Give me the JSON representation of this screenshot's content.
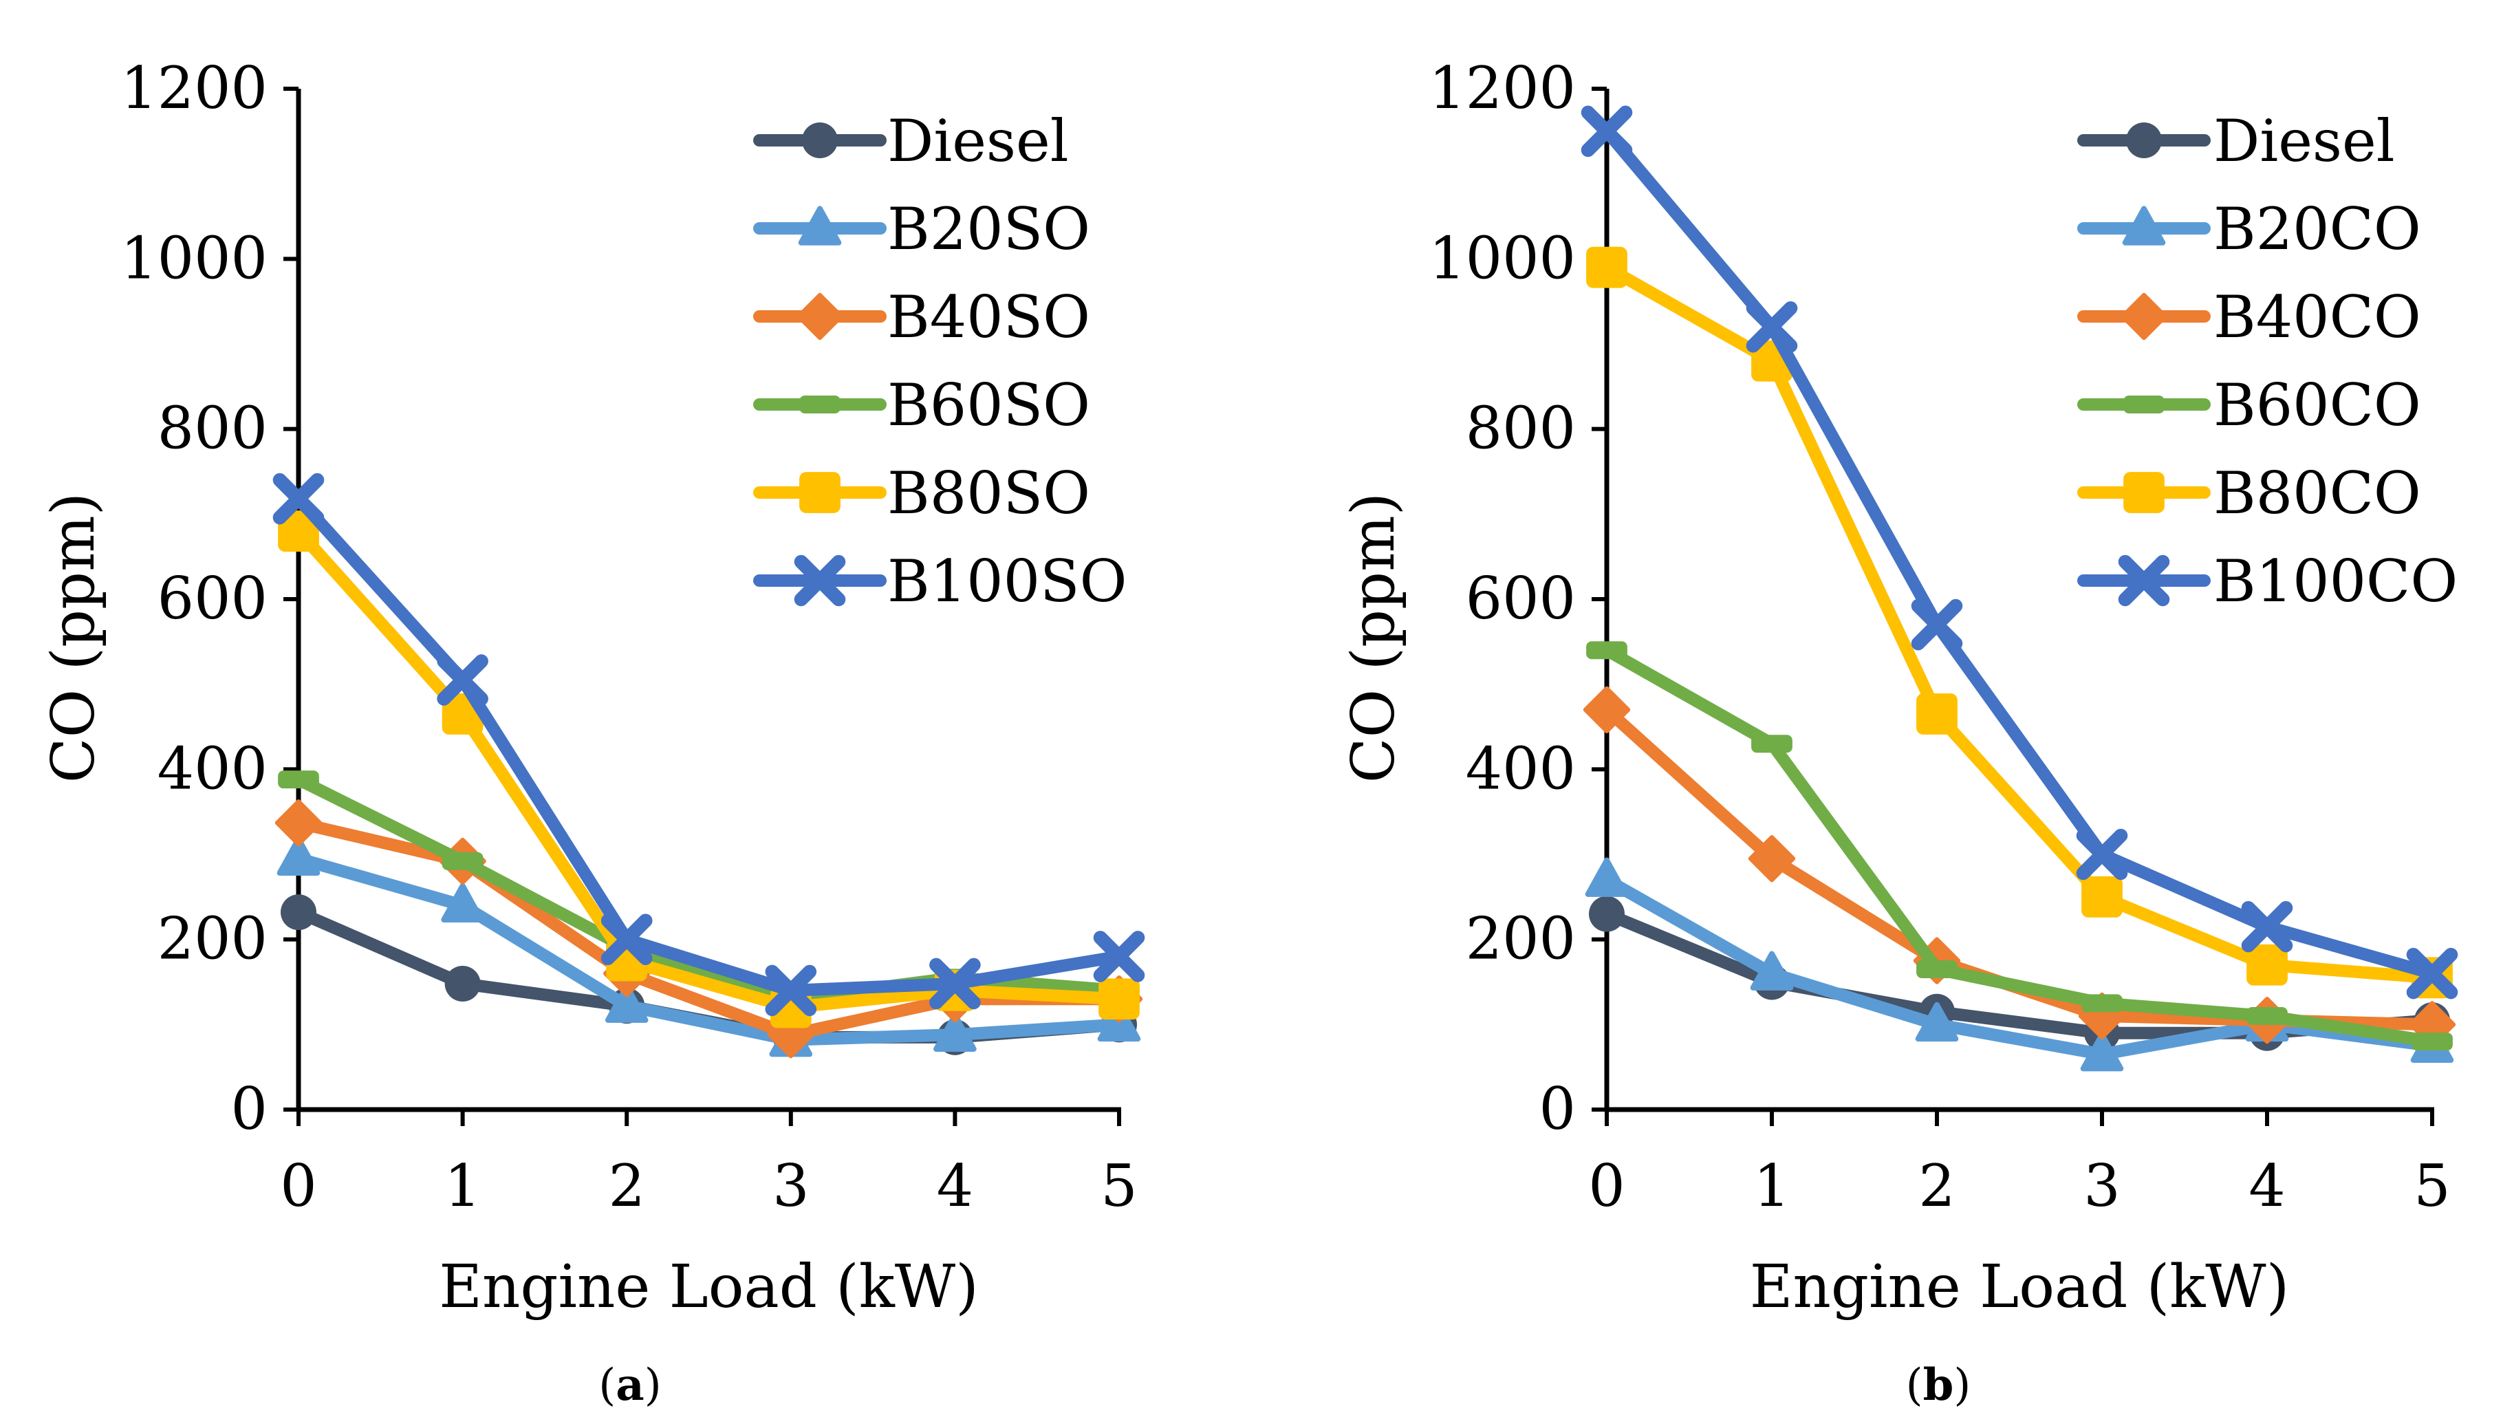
{
  "chart_data": [
    {
      "type": "line",
      "panel_label": "a",
      "xlabel": "Engine Load (kW)",
      "ylabel": "CO (ppm)",
      "x": [
        0,
        1,
        2,
        3,
        4,
        5
      ],
      "ylim": [
        0,
        1200
      ],
      "yticks": [
        0,
        200,
        400,
        600,
        800,
        1000,
        1200
      ],
      "legend_position": "top-right",
      "grid": false,
      "series": [
        {
          "name": "Diesel",
          "color": "#44546A",
          "marker": "circle",
          "values": [
            232,
            148,
            122,
            85,
            85,
            100
          ]
        },
        {
          "name": "B20SO",
          "color": "#5B9BD5",
          "marker": "triangle",
          "values": [
            295,
            240,
            122,
            82,
            88,
            100
          ]
        },
        {
          "name": "B40SO",
          "color": "#ED7D31",
          "marker": "diamond",
          "values": [
            337,
            292,
            160,
            88,
            130,
            130
          ]
        },
        {
          "name": "B60SO",
          "color": "#70AD47",
          "marker": "dash",
          "values": [
            388,
            292,
            190,
            130,
            155,
            140
          ]
        },
        {
          "name": "B80SO",
          "color": "#FFC000",
          "marker": "square",
          "values": [
            680,
            465,
            175,
            120,
            140,
            130
          ]
        },
        {
          "name": "B100SO",
          "color": "#4472C4",
          "marker": "x",
          "values": [
            718,
            505,
            200,
            140,
            148,
            180
          ]
        }
      ]
    },
    {
      "type": "line",
      "panel_label": "b",
      "xlabel": "Engine Load (kW)",
      "ylabel": "CO (ppm)",
      "x": [
        0,
        1,
        2,
        3,
        4,
        5
      ],
      "ylim": [
        0,
        1200
      ],
      "yticks": [
        0,
        200,
        400,
        600,
        800,
        1000,
        1200
      ],
      "legend_position": "top-right",
      "grid": false,
      "series": [
        {
          "name": "Diesel",
          "color": "#44546A",
          "marker": "circle",
          "values": [
            230,
            150,
            115,
            90,
            90,
            105
          ]
        },
        {
          "name": "B20CO",
          "color": "#5B9BD5",
          "marker": "triangle",
          "values": [
            270,
            160,
            100,
            65,
            100,
            75
          ]
        },
        {
          "name": "B40CO",
          "color": "#ED7D31",
          "marker": "diamond",
          "values": [
            470,
            295,
            175,
            110,
            105,
            100
          ]
        },
        {
          "name": "B60CO",
          "color": "#70AD47",
          "marker": "dash",
          "values": [
            540,
            430,
            165,
            125,
            110,
            80
          ]
        },
        {
          "name": "B80CO",
          "color": "#FFC000",
          "marker": "square",
          "values": [
            990,
            880,
            465,
            250,
            170,
            155
          ]
        },
        {
          "name": "B100CO",
          "color": "#4472C4",
          "marker": "x",
          "values": [
            1150,
            920,
            570,
            300,
            215,
            160
          ]
        }
      ]
    }
  ]
}
